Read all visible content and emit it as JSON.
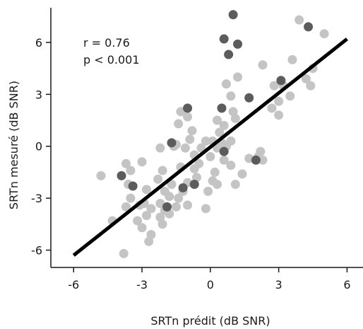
{
  "chart_data": {
    "type": "scatter",
    "title": "",
    "xlabel": "SRTn prédit (dB SNR)",
    "ylabel": "SRTn mesuré (dB SNR)",
    "xlim": [
      -7,
      6.7
    ],
    "ylim": [
      -7,
      8
    ],
    "xticks": [
      -6,
      -3,
      0,
      3,
      6
    ],
    "yticks": [
      -6,
      -3,
      0,
      3,
      6
    ],
    "xtick_labels": [
      "-6",
      "-3",
      "0",
      "3",
      "6"
    ],
    "ytick_labels": [
      "-6",
      "-3",
      "0",
      "3",
      "6"
    ],
    "grid": false,
    "annotations": [
      "r = 0.76",
      "p < 0.001"
    ],
    "colors": {
      "light": "#c4c4c4",
      "dark": "#5c5c5c",
      "line": "#000000"
    },
    "fit_line": {
      "x": [
        -6,
        6
      ],
      "y": [
        -6.3,
        6.2
      ]
    },
    "series": [
      {
        "color": "light",
        "points": [
          [
            3.9,
            7.3
          ],
          [
            5.0,
            6.5
          ],
          [
            3.6,
            5.0
          ],
          [
            2.3,
            4.7
          ],
          [
            4.2,
            3.9
          ],
          [
            4.5,
            4.5
          ],
          [
            1.2,
            4.0
          ],
          [
            0.7,
            3.6
          ],
          [
            2.8,
            3.5
          ],
          [
            3.2,
            3.5
          ],
          [
            3.0,
            2.6
          ],
          [
            3.5,
            2.9
          ],
          [
            4.4,
            3.5
          ],
          [
            0.9,
            2.9
          ],
          [
            1.0,
            2.0
          ],
          [
            2.7,
            2.2
          ],
          [
            3.0,
            1.8
          ],
          [
            -1.3,
            2.0
          ],
          [
            -1.0,
            1.7
          ],
          [
            -1.4,
            1.3
          ],
          [
            0.3,
            1.5
          ],
          [
            0.6,
            1.2
          ],
          [
            1.1,
            1.6
          ],
          [
            -0.8,
            0.9
          ],
          [
            0.4,
            0.8
          ],
          [
            -0.9,
            0.4
          ],
          [
            -0.2,
            0.3
          ],
          [
            0.1,
            0.3
          ],
          [
            0.5,
            0.2
          ],
          [
            0.9,
            0.3
          ],
          [
            -1.6,
            0.0
          ],
          [
            -1.1,
            -0.1
          ],
          [
            -0.4,
            -0.1
          ],
          [
            0.3,
            -0.1
          ],
          [
            0.7,
            0.0
          ],
          [
            -1.5,
            0.1
          ],
          [
            -2.2,
            -0.1
          ],
          [
            -0.7,
            -0.5
          ],
          [
            0.0,
            -0.6
          ],
          [
            0.6,
            -0.8
          ],
          [
            1.7,
            -0.7
          ],
          [
            2.2,
            -0.3
          ],
          [
            -0.5,
            -1.0
          ],
          [
            0.9,
            -1.1
          ],
          [
            -3.7,
            -1.0
          ],
          [
            -3.5,
            -1.4
          ],
          [
            -3.0,
            -0.9
          ],
          [
            -2.1,
            -1.4
          ],
          [
            -1.3,
            -1.2
          ],
          [
            -0.7,
            -1.3
          ],
          [
            0.2,
            -1.5
          ],
          [
            1.4,
            -1.6
          ],
          [
            2.1,
            -0.6
          ],
          [
            2.3,
            -0.8
          ],
          [
            -4.8,
            -1.7
          ],
          [
            -3.6,
            -2.2
          ],
          [
            -2.3,
            -1.9
          ],
          [
            -1.7,
            -2.2
          ],
          [
            -1.0,
            -2.1
          ],
          [
            -0.6,
            -1.8
          ],
          [
            0.3,
            -2.2
          ],
          [
            1.1,
            -2.2
          ],
          [
            -0.1,
            -2.6
          ],
          [
            -2.8,
            -2.5
          ],
          [
            -2.0,
            -2.6
          ],
          [
            -1.2,
            -2.6
          ],
          [
            0.1,
            -2.0
          ],
          [
            -3.5,
            -3.0
          ],
          [
            -2.9,
            -3.3
          ],
          [
            -2.2,
            -3.3
          ],
          [
            -1.8,
            -2.9
          ],
          [
            -1.4,
            -3.0
          ],
          [
            -3.7,
            -3.5
          ],
          [
            -3.1,
            -3.4
          ],
          [
            -2.6,
            -3.6
          ],
          [
            -2.0,
            -3.7
          ],
          [
            -1.5,
            -3.5
          ],
          [
            -1.0,
            -3.4
          ],
          [
            -0.2,
            -3.6
          ],
          [
            -4.3,
            -4.3
          ],
          [
            -3.2,
            -4.3
          ],
          [
            -2.8,
            -4.0
          ],
          [
            -2.2,
            -4.1
          ],
          [
            -1.8,
            -3.9
          ],
          [
            -3.0,
            -4.7
          ],
          [
            -2.1,
            -4.5
          ],
          [
            -2.6,
            -5.1
          ],
          [
            -2.7,
            -5.5
          ],
          [
            -3.8,
            -6.2
          ]
        ]
      },
      {
        "color": "dark",
        "points": [
          [
            1.0,
            7.6
          ],
          [
            4.3,
            6.9
          ],
          [
            0.6,
            6.2
          ],
          [
            1.2,
            5.9
          ],
          [
            0.8,
            5.3
          ],
          [
            3.1,
            3.8
          ],
          [
            1.7,
            2.8
          ],
          [
            -1.0,
            2.2
          ],
          [
            0.5,
            2.2
          ],
          [
            -1.7,
            0.2
          ],
          [
            0.6,
            -0.3
          ],
          [
            2.0,
            -0.8
          ],
          [
            -3.9,
            -1.7
          ],
          [
            -3.4,
            -2.3
          ],
          [
            -0.7,
            -2.2
          ],
          [
            -1.2,
            -2.4
          ],
          [
            -1.9,
            -3.5
          ]
        ]
      }
    ]
  }
}
